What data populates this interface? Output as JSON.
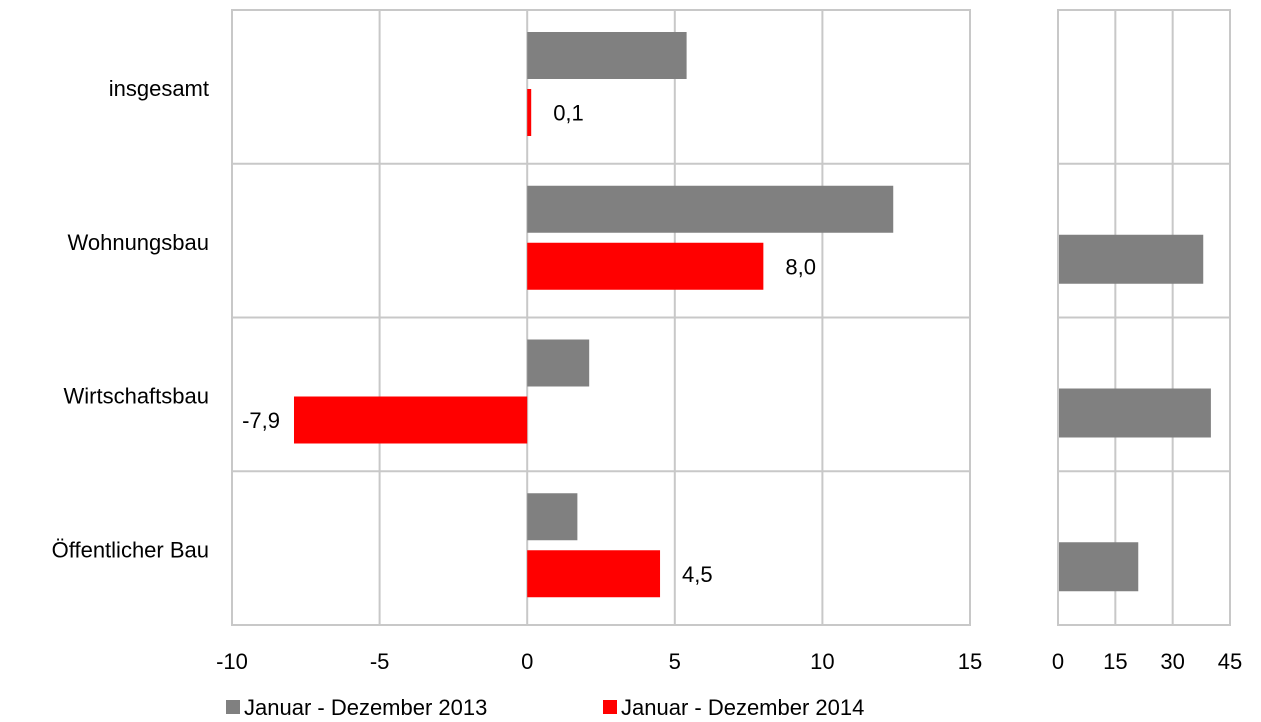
{
  "chart_data": [
    {
      "type": "bar",
      "orientation": "horizontal",
      "categories": [
        "insgesamt",
        "Wohnungsbau",
        "Wirtschaftsbau",
        "Öffentlicher Bau"
      ],
      "series": [
        {
          "name": "Januar - Dezember 2013",
          "color": "#808080",
          "values": [
            5.4,
            12.4,
            2.1,
            1.7
          ]
        },
        {
          "name": "Januar - Dezember 2014",
          "color": "#ff0000",
          "values": [
            0.1,
            8.0,
            -7.9,
            4.5
          ]
        }
      ],
      "data_labels": [
        "0,1",
        "8,0",
        "-7,9",
        "4,5"
      ],
      "xlim": [
        -10,
        15
      ],
      "xticks": [
        -10,
        -5,
        0,
        5,
        10,
        15
      ],
      "xtick_labels": [
        "-10",
        "-5",
        "0",
        "5",
        "10",
        "15"
      ],
      "grid": true,
      "legend_position": "bottom-left"
    },
    {
      "type": "bar",
      "orientation": "horizontal",
      "categories": [
        "insgesamt",
        "Wohnungsbau",
        "Wirtschaftsbau",
        "Öffentlicher Bau"
      ],
      "series": [
        {
          "name": "Januar - Dezember 2013",
          "color": "#808080",
          "values": [
            null,
            38,
            40,
            21
          ]
        }
      ],
      "xlim": [
        0,
        45
      ],
      "xticks": [
        0,
        15,
        30,
        45
      ],
      "xtick_labels": [
        "0",
        "15",
        "30",
        "45"
      ],
      "grid": true
    }
  ]
}
